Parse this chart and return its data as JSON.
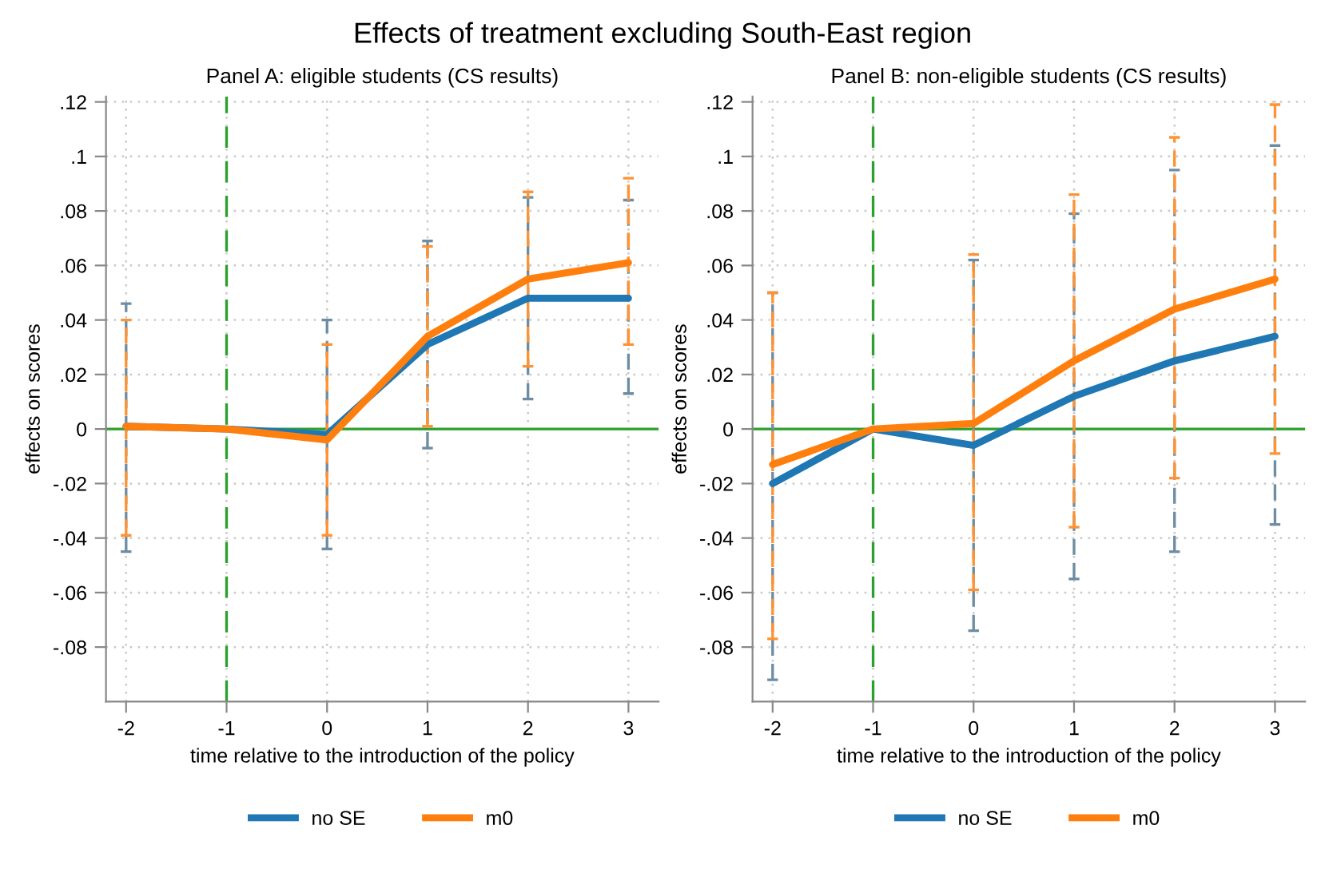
{
  "chart_data": [
    {
      "type": "line",
      "title": "Effects of treatment excluding South-East region",
      "subtitle": "Panel A: eligible students (CS results)",
      "xlabel": "time relative to the introduction of the policy",
      "ylabel": "effects on scores",
      "x": [
        -2,
        -1,
        0,
        1,
        2,
        3
      ],
      "series": [
        {
          "name": "no SE",
          "color": "#1f77b4",
          "values": [
            0.001,
            0,
            -0.002,
            0.031,
            0.048,
            0.048
          ],
          "errors": [
            [
              -0.045,
              0.046
            ],
            null,
            [
              -0.044,
              0.04
            ],
            [
              -0.007,
              0.069
            ],
            [
              0.011,
              0.085
            ],
            [
              0.013,
              0.084
            ]
          ]
        },
        {
          "name": "m0",
          "color": "#ff7f0e",
          "values": [
            0.001,
            0,
            -0.004,
            0.034,
            0.055,
            0.061
          ],
          "errors": [
            [
              -0.039,
              0.04
            ],
            null,
            [
              -0.039,
              0.031
            ],
            [
              0.001,
              0.067
            ],
            [
              0.023,
              0.087
            ],
            [
              0.031,
              0.092
            ]
          ]
        }
      ],
      "xlim": [
        -2.2,
        3.3
      ],
      "xticks": [
        -2,
        -1,
        0,
        1,
        2,
        3
      ],
      "ylim": [
        -0.1,
        0.122
      ],
      "yticks": [
        {
          "value": 0.12,
          "label": ".12"
        },
        {
          "value": 0.1,
          "label": ".1"
        },
        {
          "value": 0.08,
          "label": ".08"
        },
        {
          "value": 0.06,
          "label": ".06"
        },
        {
          "value": 0.04,
          "label": ".04"
        },
        {
          "value": 0.02,
          "label": ".02"
        },
        {
          "value": 0,
          "label": "0"
        },
        {
          "value": -0.02,
          "label": "-.02"
        },
        {
          "value": -0.04,
          "label": "-.04"
        },
        {
          "value": -0.06,
          "label": "-.06"
        },
        {
          "value": -0.08,
          "label": "-.08"
        }
      ],
      "ref_lines": [
        {
          "axis": "y",
          "value": 0,
          "color": "#2ca02c",
          "line_style": "solid"
        },
        {
          "axis": "x",
          "value": -1,
          "color": "#2ca02c",
          "line_style": "dashed"
        }
      ],
      "grid": true,
      "legend": "bottom",
      "line_style": "solid"
    },
    {
      "type": "line",
      "subtitle": "Panel B: non-eligible students (CS results)",
      "xlabel": "time relative to the introduction of the policy",
      "ylabel": "effects on scores",
      "x": [
        -2,
        -1,
        0,
        1,
        2,
        3
      ],
      "series": [
        {
          "name": "no SE",
          "color": "#1f77b4",
          "values": [
            -0.02,
            0,
            -0.006,
            0.012,
            0.025,
            0.034
          ],
          "errors": [
            [
              -0.092,
              0.05
            ],
            null,
            [
              -0.074,
              0.062
            ],
            [
              -0.055,
              0.079
            ],
            [
              -0.045,
              0.095
            ],
            [
              -0.035,
              0.104
            ]
          ]
        },
        {
          "name": "m0",
          "color": "#ff7f0e",
          "values": [
            -0.013,
            0,
            0.002,
            0.025,
            0.044,
            0.055
          ],
          "errors": [
            [
              -0.077,
              0.05
            ],
            null,
            [
              -0.059,
              0.064
            ],
            [
              -0.036,
              0.086
            ],
            [
              -0.018,
              0.107
            ],
            [
              -0.009,
              0.119
            ]
          ]
        }
      ],
      "xlim": [
        -2.2,
        3.3
      ],
      "xticks": [
        -2,
        -1,
        0,
        1,
        2,
        3
      ],
      "ylim": [
        -0.1,
        0.122
      ],
      "yticks": [
        {
          "value": 0.12,
          "label": ".12"
        },
        {
          "value": 0.1,
          "label": ".1"
        },
        {
          "value": 0.08,
          "label": ".08"
        },
        {
          "value": 0.06,
          "label": ".06"
        },
        {
          "value": 0.04,
          "label": ".04"
        },
        {
          "value": 0.02,
          "label": ".02"
        },
        {
          "value": 0,
          "label": "0"
        },
        {
          "value": -0.02,
          "label": "-.02"
        },
        {
          "value": -0.04,
          "label": "-.04"
        },
        {
          "value": -0.06,
          "label": "-.06"
        },
        {
          "value": -0.08,
          "label": "-.08"
        }
      ],
      "ref_lines": [
        {
          "axis": "y",
          "value": 0,
          "color": "#2ca02c",
          "line_style": "solid"
        },
        {
          "axis": "x",
          "value": -1,
          "color": "#2ca02c",
          "line_style": "dashed"
        }
      ],
      "grid": true,
      "legend": "bottom",
      "line_style": "solid"
    }
  ]
}
